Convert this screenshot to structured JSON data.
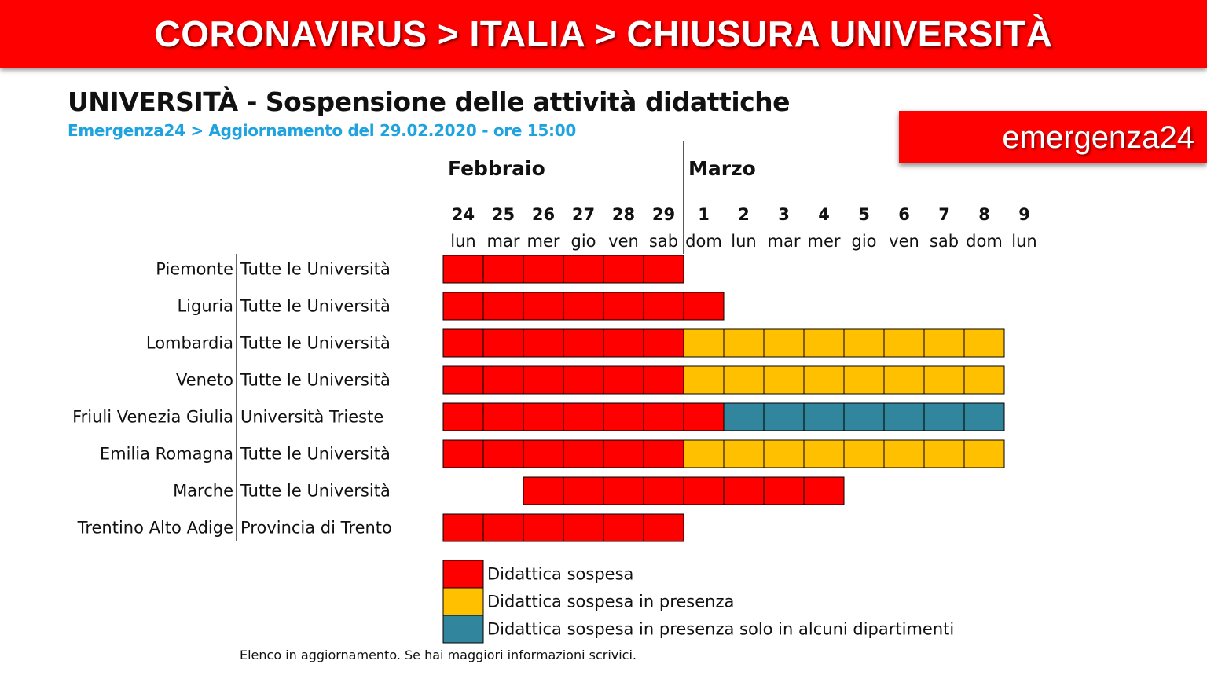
{
  "header": {
    "title": "CORONAVIRUS > ITALIA > CHIUSURA UNIVERSITÀ"
  },
  "brand": {
    "label": "emergenza24"
  },
  "footnote": "Elenco in aggiornamento. Se hai maggiori informazioni scrivici.",
  "chart_data": {
    "type": "heatmap",
    "title": "UNIVERSITÀ - Sospensione delle attività didattiche",
    "subtitle": "Emergenza24 > Aggiornamento del 29.02.2020 - ore 15:00",
    "months": [
      {
        "label": "Febbraio",
        "start_index": 0
      },
      {
        "label": "Marzo",
        "start_index": 6
      }
    ],
    "days": [
      {
        "num": "24",
        "dow": "lun"
      },
      {
        "num": "25",
        "dow": "mar"
      },
      {
        "num": "26",
        "dow": "mer"
      },
      {
        "num": "27",
        "dow": "gio"
      },
      {
        "num": "28",
        "dow": "ven"
      },
      {
        "num": "29",
        "dow": "sab"
      },
      {
        "num": "1",
        "dow": "dom"
      },
      {
        "num": "2",
        "dow": "lun"
      },
      {
        "num": "3",
        "dow": "mar"
      },
      {
        "num": "4",
        "dow": "mer"
      },
      {
        "num": "5",
        "dow": "gio"
      },
      {
        "num": "6",
        "dow": "ven"
      },
      {
        "num": "7",
        "dow": "sab"
      },
      {
        "num": "8",
        "dow": "dom"
      },
      {
        "num": "9",
        "dow": "lun"
      }
    ],
    "status_colors": {
      "R": "#ff0000",
      "Y": "#ffc000",
      "B": "#31859c"
    },
    "rows": [
      {
        "region": "Piemonte",
        "scope": "Tutte le Università",
        "cells": [
          "R",
          "R",
          "R",
          "R",
          "R",
          "R",
          "",
          "",
          "",
          "",
          "",
          "",
          "",
          "",
          ""
        ]
      },
      {
        "region": "Liguria",
        "scope": "Tutte le Università",
        "cells": [
          "R",
          "R",
          "R",
          "R",
          "R",
          "R",
          "R",
          "",
          "",
          "",
          "",
          "",
          "",
          "",
          ""
        ]
      },
      {
        "region": "Lombardia",
        "scope": "Tutte le Università",
        "cells": [
          "R",
          "R",
          "R",
          "R",
          "R",
          "R",
          "Y",
          "Y",
          "Y",
          "Y",
          "Y",
          "Y",
          "Y",
          "Y",
          ""
        ]
      },
      {
        "region": "Veneto",
        "scope": "Tutte le Università",
        "cells": [
          "R",
          "R",
          "R",
          "R",
          "R",
          "R",
          "Y",
          "Y",
          "Y",
          "Y",
          "Y",
          "Y",
          "Y",
          "Y",
          ""
        ]
      },
      {
        "region": "Friuli Venezia Giulia",
        "scope": "Università Trieste",
        "cells": [
          "R",
          "R",
          "R",
          "R",
          "R",
          "R",
          "R",
          "B",
          "B",
          "B",
          "B",
          "B",
          "B",
          "B",
          ""
        ]
      },
      {
        "region": "Emilia Romagna",
        "scope": "Tutte le Università",
        "cells": [
          "R",
          "R",
          "R",
          "R",
          "R",
          "R",
          "Y",
          "Y",
          "Y",
          "Y",
          "Y",
          "Y",
          "Y",
          "Y",
          ""
        ]
      },
      {
        "region": "Marche",
        "scope": "Tutte le Università",
        "cells": [
          "",
          "",
          "R",
          "R",
          "R",
          "R",
          "R",
          "R",
          "R",
          "R",
          "",
          "",
          "",
          "",
          ""
        ]
      },
      {
        "region": "Trentino Alto Adige",
        "scope": "Provincia di Trento",
        "cells": [
          "R",
          "R",
          "R",
          "R",
          "R",
          "R",
          "",
          "",
          "",
          "",
          "",
          "",
          "",
          "",
          ""
        ]
      }
    ],
    "legend": [
      {
        "key": "R",
        "label": "Didattica sospesa"
      },
      {
        "key": "Y",
        "label": "Didattica sospesa in presenza"
      },
      {
        "key": "B",
        "label": "Didattica sospesa in presenza solo in alcuni dipartimenti"
      }
    ]
  }
}
